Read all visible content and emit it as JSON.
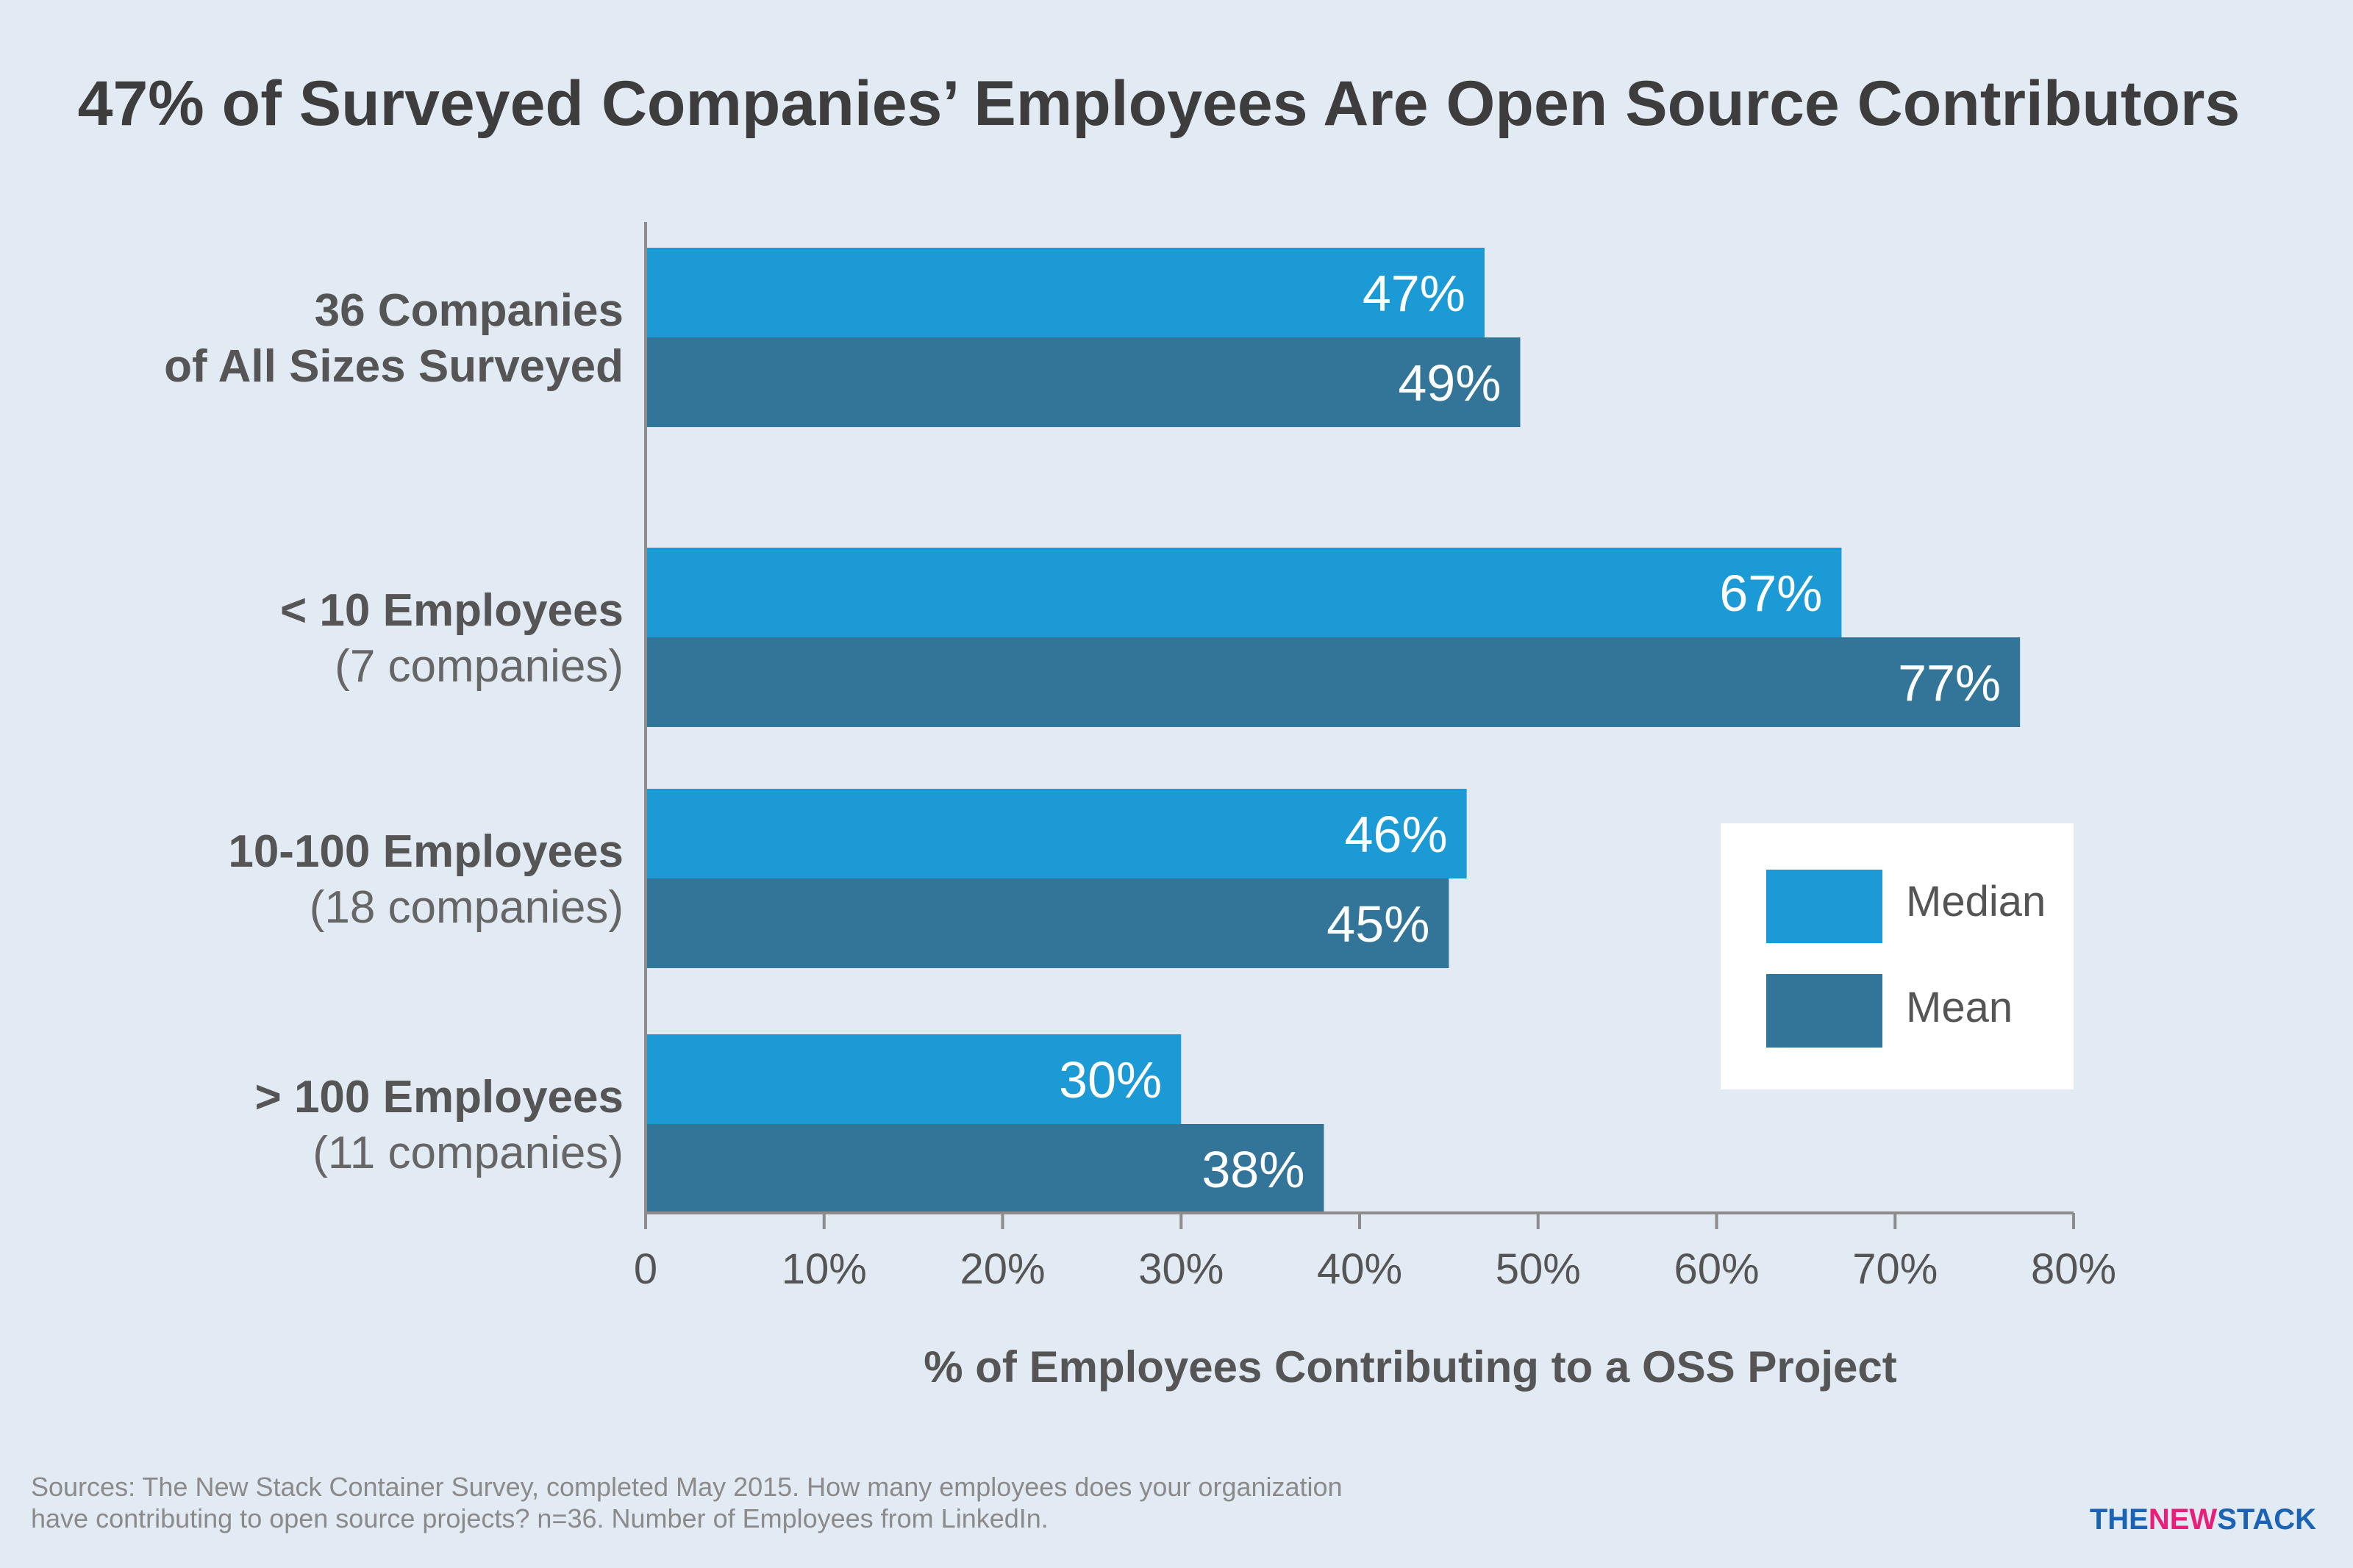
{
  "chart_data": {
    "type": "bar",
    "orientation": "horizontal",
    "title": "47% of Surveyed Companies’ Employees Are Open Source Contributors",
    "xlabel": "% of Employees Contributing to a OSS Project",
    "ylabel": "",
    "xlim": [
      0,
      80
    ],
    "x_ticks": [
      "0",
      "10%",
      "20%",
      "30%",
      "40%",
      "50%",
      "60%",
      "70%",
      "80%"
    ],
    "categories": [
      {
        "lines": [
          "36 Companies",
          "of All Sizes Surveyed"
        ],
        "bold_lines": [
          0,
          1
        ]
      },
      {
        "lines": [
          "< 10 Employees",
          "(7 companies)"
        ],
        "bold_lines": [
          0
        ]
      },
      {
        "lines": [
          "10-100 Employees",
          "(18 companies)"
        ],
        "bold_lines": [
          0
        ]
      },
      {
        "lines": [
          "> 100 Employees",
          "(11 companies)"
        ],
        "bold_lines": [
          0
        ]
      }
    ],
    "series": [
      {
        "name": "Median",
        "color": "#1b9ad6",
        "values": [
          47,
          67,
          46,
          30
        ],
        "labels": [
          "47%",
          "67%",
          "46%",
          "30%"
        ]
      },
      {
        "name": "Mean",
        "color": "#327599",
        "values": [
          49,
          77,
          45,
          38
        ],
        "labels": [
          "49%",
          "77%",
          "45%",
          "38%"
        ]
      }
    ],
    "legend": {
      "position": "bottom-right",
      "entries": [
        "Median",
        "Mean"
      ]
    },
    "grid": false
  },
  "footer": {
    "source_line1": "Sources: The New Stack Container Survey, completed May 2015. How many employees does your organization",
    "source_line2": "have contributing to open source projects? n=36. Number of Employees from LinkedIn.",
    "logo_part1": "THE",
    "logo_part2": "NEW",
    "logo_part3": "STACK",
    "logo_color_dark": "#1b63b5",
    "logo_color_accent": "#e91e7a"
  }
}
